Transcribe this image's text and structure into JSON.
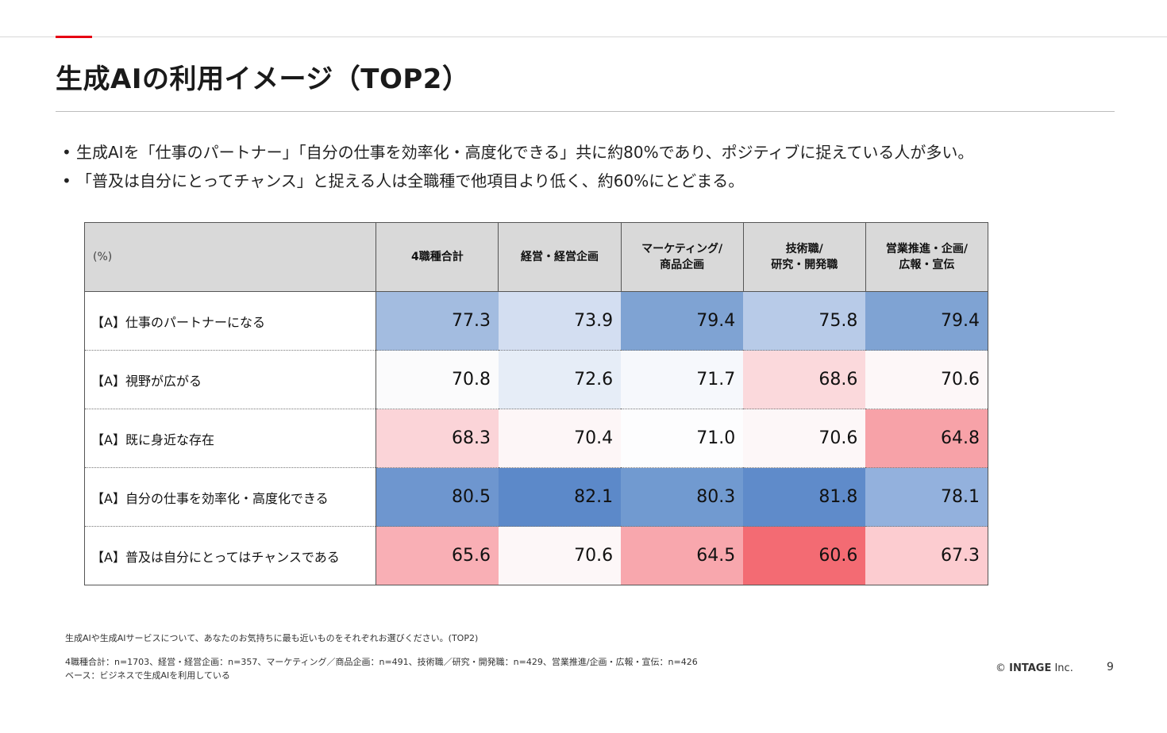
{
  "page": {
    "title": "生成AIの利用イメージ（TOP2）",
    "page_number": "9"
  },
  "bullets": [
    "生成AIを「仕事のパートナー」「自分の仕事を効率化・高度化できる」共に約80%であり、ポジティブに捉えている人が多い。",
    "「普及は自分にとってチャンス」と捉える人は全職種で他項目より低く、約60%にとどまる。"
  ],
  "table": {
    "unit_label": "(%)",
    "headers": [
      "4職種合計",
      "経営・経営企画",
      "マーケティング/\n商品企画",
      "技術職/\n研究・開発職",
      "営業推進・企画/\n広報・宣伝"
    ],
    "header_lines": [
      [
        "4職種合計"
      ],
      [
        "経営・経営企画"
      ],
      [
        "マーケティング/",
        "商品企画"
      ],
      [
        "技術職/",
        "研究・開発職"
      ],
      [
        "営業推進・企画/",
        "広報・宣伝"
      ]
    ],
    "rows": [
      {
        "label": "【A】仕事のパートナーになる",
        "values": [
          "77.3",
          "73.9",
          "79.4",
          "75.8",
          "79.4"
        ]
      },
      {
        "label": "【A】視野が広がる",
        "values": [
          "70.8",
          "72.6",
          "71.7",
          "68.6",
          "70.6"
        ]
      },
      {
        "label": "【A】既に身近な存在",
        "values": [
          "68.3",
          "70.4",
          "71.0",
          "70.6",
          "64.8"
        ]
      },
      {
        "label": "【A】自分の仕事を効率化・高度化できる",
        "values": [
          "80.5",
          "82.1",
          "80.3",
          "81.8",
          "78.1"
        ]
      },
      {
        "label": "【A】普及は自分にとってはチャンスである",
        "values": [
          "65.6",
          "70.6",
          "64.5",
          "60.6",
          "67.3"
        ]
      }
    ],
    "cell_colors": [
      [
        "#a3bce0",
        "#d3def1",
        "#7fa3d3",
        "#b8cbe8",
        "#7fa3d3"
      ],
      [
        "#fbfbfc",
        "#e6edf7",
        "#f6f8fc",
        "#fbd9dc",
        "#fdf7f8"
      ],
      [
        "#fbd4d8",
        "#fdf6f7",
        "#fdfdfe",
        "#fdf7f8",
        "#f7a2a8"
      ],
      [
        "#6e96cf",
        "#5c89c9",
        "#719ad0",
        "#5f8bca",
        "#93b1dd"
      ],
      [
        "#f9afb5",
        "#fdf7f8",
        "#f8a7ad",
        "#f36b73",
        "#fcccd0"
      ]
    ]
  },
  "notes": {
    "question": "生成AIや生成AIサービスについて、あなたのお気持ちに最も近いものをそれぞれお選びください。(TOP2)",
    "sample_sizes": "4職種合計：n=1703、経営・経営企画：n=357、マーケティング／商品企画：n=491、技術職／研究・開発職：n=429、営業推進/企画・広報・宣伝：n=426",
    "base": "ベース：ビジネスで生成AIを利用している"
  },
  "footer": {
    "copyright_symbol": "©",
    "copyright_brand": "INTAGE",
    "copyright_suffix": "Inc."
  }
}
